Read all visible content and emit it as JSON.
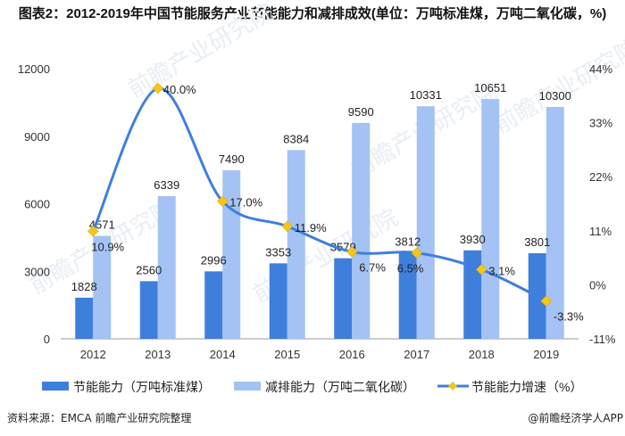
{
  "title": "图表2：2012-2019年中国节能服务产业节能能力和减排成效(单位：万吨标准煤，万吨二氧化碳，%)",
  "source": "资料来源：EMCA 前瞻产业研究院整理",
  "credit": "@前瞻经济学人APP",
  "watermark": "前瞻产业研究院",
  "chart_data": {
    "type": "bar+line",
    "categories": [
      "2012",
      "2013",
      "2014",
      "2015",
      "2016",
      "2017",
      "2018",
      "2019"
    ],
    "series": [
      {
        "name": "节能能力（万吨标准煤）",
        "type": "bar",
        "axis": "left",
        "color": "#3f7fdc",
        "values": [
          1828,
          2560,
          2996,
          3353,
          3579,
          3812,
          3930,
          3801
        ]
      },
      {
        "name": "减排能力（万吨二氧化碳）",
        "type": "bar",
        "axis": "left",
        "color": "#a4c2f4",
        "values": [
          4571,
          6339,
          7490,
          8384,
          9590,
          10331,
          10651,
          10300
        ]
      },
      {
        "name": "节能能力增速（%）",
        "type": "line",
        "smooth": true,
        "axis": "right",
        "color": "#3f7fdc",
        "marker_color": "#f5c518",
        "values": [
          10.9,
          40.0,
          17.0,
          11.9,
          6.7,
          6.5,
          3.1,
          -3.3
        ],
        "labels": [
          "10.9%",
          "40.0%",
          "17.0%",
          "11.9%",
          "6.7%",
          "6.5%",
          "3.1%",
          "-3.3%"
        ]
      }
    ],
    "ylim_left": [
      0,
      12000
    ],
    "yticks_left": [
      "0",
      "3000",
      "6000",
      "9000",
      "12000"
    ],
    "ylim_right": [
      -11,
      44
    ],
    "yticks_right": [
      "-11%",
      "0%",
      "11%",
      "22%",
      "33%",
      "44%"
    ],
    "grid": false,
    "legend": "bottom"
  }
}
